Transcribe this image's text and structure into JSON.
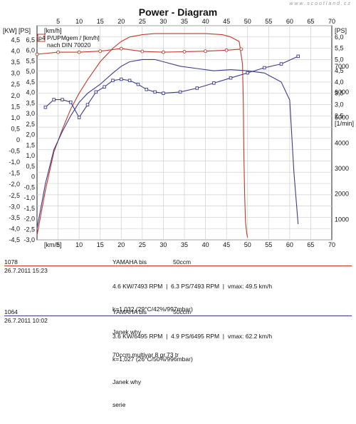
{
  "title": "Power - Diagram",
  "watermark": "www.scootland.cz",
  "colors": {
    "run1078": "#c0392b",
    "run1064": "#3c3c8c"
  },
  "chart_data": {
    "type": "line",
    "title": "Power - Diagram",
    "x_axis": {
      "label": "[km/h]",
      "range": [
        0,
        70
      ],
      "ticks": [
        0,
        5,
        10,
        15,
        20,
        25,
        30,
        35,
        40,
        45,
        50,
        55,
        60,
        65,
        70
      ]
    },
    "y_left_kw": {
      "label": "[KW]",
      "range": [
        -4.5,
        4.5
      ],
      "ticks": [
        "4,5",
        "4,0",
        "3,5",
        "3,0",
        "2,5",
        "2,0",
        "1,5",
        "1,0",
        "0,5",
        "0",
        "-0,5",
        "-1,0",
        "-1,5",
        "-2,0",
        "-2,5",
        "-3,0",
        "-3,5",
        "-4,0",
        "-4,5"
      ]
    },
    "y_left_ps": {
      "label": "[PS]",
      "range": [
        -3.0,
        6.5
      ],
      "ticks": [
        "6,5",
        "6,0",
        "5,5",
        "5,0",
        "4,5",
        "4,0",
        "3,5",
        "3,0",
        "2,5",
        "2,0",
        "1,5",
        "1,0",
        "0,5",
        "0",
        "-0,5",
        "-1,0",
        "-1,5",
        "-2,0",
        "-2,5",
        "-3,0"
      ]
    },
    "y_right_ps": {
      "label": "[PS]",
      "ticks": [
        "6,5",
        "6,0",
        "5,5",
        "5,0",
        "4,5",
        "4,0",
        "3,5",
        "3,0",
        "2,5",
        "2,0",
        "1,5",
        "1,0",
        "0,5",
        "0"
      ]
    },
    "y_right_rpm": {
      "label": "[1/min]",
      "ticks": [
        "7000",
        "6000",
        "5000",
        "4000",
        "3000",
        "2000",
        "1000"
      ]
    },
    "legend": {
      "box_label": "p4",
      "lines": [
        "P/UPMgem / [km/h]",
        "nach DIN 70020"
      ]
    },
    "grid": true,
    "series": [
      {
        "run": "1078",
        "kind": "power_ps",
        "x": [
          0,
          2,
          4,
          6,
          8,
          10,
          12,
          15,
          18,
          20,
          22,
          25,
          28,
          30,
          35,
          40,
          44,
          46,
          48,
          48.8,
          49.0,
          49.1,
          49.3,
          49.5,
          49.8,
          50.0
        ],
        "y": [
          -2.8,
          -0.8,
          0.9,
          1.9,
          2.8,
          3.5,
          4.1,
          4.9,
          5.5,
          5.8,
          6.0,
          6.1,
          6.15,
          6.15,
          6.15,
          6.15,
          6.1,
          6.0,
          5.8,
          4.8,
          3.0,
          1.0,
          -1.0,
          -2.2,
          -2.7,
          -2.9
        ]
      },
      {
        "run": "1078",
        "kind": "rpm",
        "x": [
          0,
          5,
          10,
          15,
          20,
          25,
          30,
          35,
          40,
          45,
          48.5
        ],
        "y": [
          7480,
          7560,
          7560,
          7600,
          7700,
          7590,
          7560,
          7580,
          7600,
          7640,
          7680
        ]
      },
      {
        "run": "1064",
        "kind": "power_ps",
        "x": [
          0,
          2,
          4,
          6,
          8,
          10,
          12,
          15,
          18,
          20,
          22,
          25,
          28,
          30,
          34,
          38,
          42,
          46,
          50,
          54,
          58,
          60,
          61,
          62
        ],
        "y": [
          -2.5,
          -0.5,
          1.0,
          1.8,
          2.5,
          3.1,
          3.5,
          3.9,
          4.4,
          4.7,
          4.9,
          5.0,
          5.0,
          4.9,
          4.7,
          4.6,
          4.5,
          4.55,
          4.5,
          4.4,
          4.0,
          3.2,
          0.0,
          -2.3
        ]
      },
      {
        "run": "1064",
        "kind": "rpm",
        "x": [
          2,
          4,
          6,
          8,
          10,
          12,
          14,
          16,
          18,
          20,
          22,
          24,
          26,
          28,
          30,
          34,
          38,
          42,
          46,
          50,
          54,
          58,
          62
        ],
        "y": [
          5400,
          5700,
          5700,
          5600,
          5000,
          5500,
          6000,
          6200,
          6450,
          6500,
          6450,
          6300,
          6100,
          6000,
          5950,
          6000,
          6150,
          6350,
          6550,
          6750,
          6950,
          7100,
          7400
        ]
      }
    ]
  },
  "runs": [
    {
      "id": "1078",
      "date": "26.7.2011   15:23",
      "vehicle": "YAMAHA bis",
      "engine": "50ccm",
      "lines": [
        "4.6 KW/7493 RPM  |  6.3 PS/7493 RPM  |  vmax: 49.5 km/h",
        "k=1,032 (29°C/42%/997mbar)",
        "Janek why",
        "70ccm,multivar 8 gr,73 tr"
      ]
    },
    {
      "id": "1064",
      "date": "26.7.2011   10:02",
      "vehicle": "YAMAHA bis",
      "engine": "50ccm",
      "lines": [
        "3.6 KW/6495 RPM  |  4.9 PS/6495 RPM  |  vmax: 62.2 km/h",
        "k=1,027 (26°C/50%/996mbar)",
        "Janek why",
        "serie"
      ]
    }
  ]
}
